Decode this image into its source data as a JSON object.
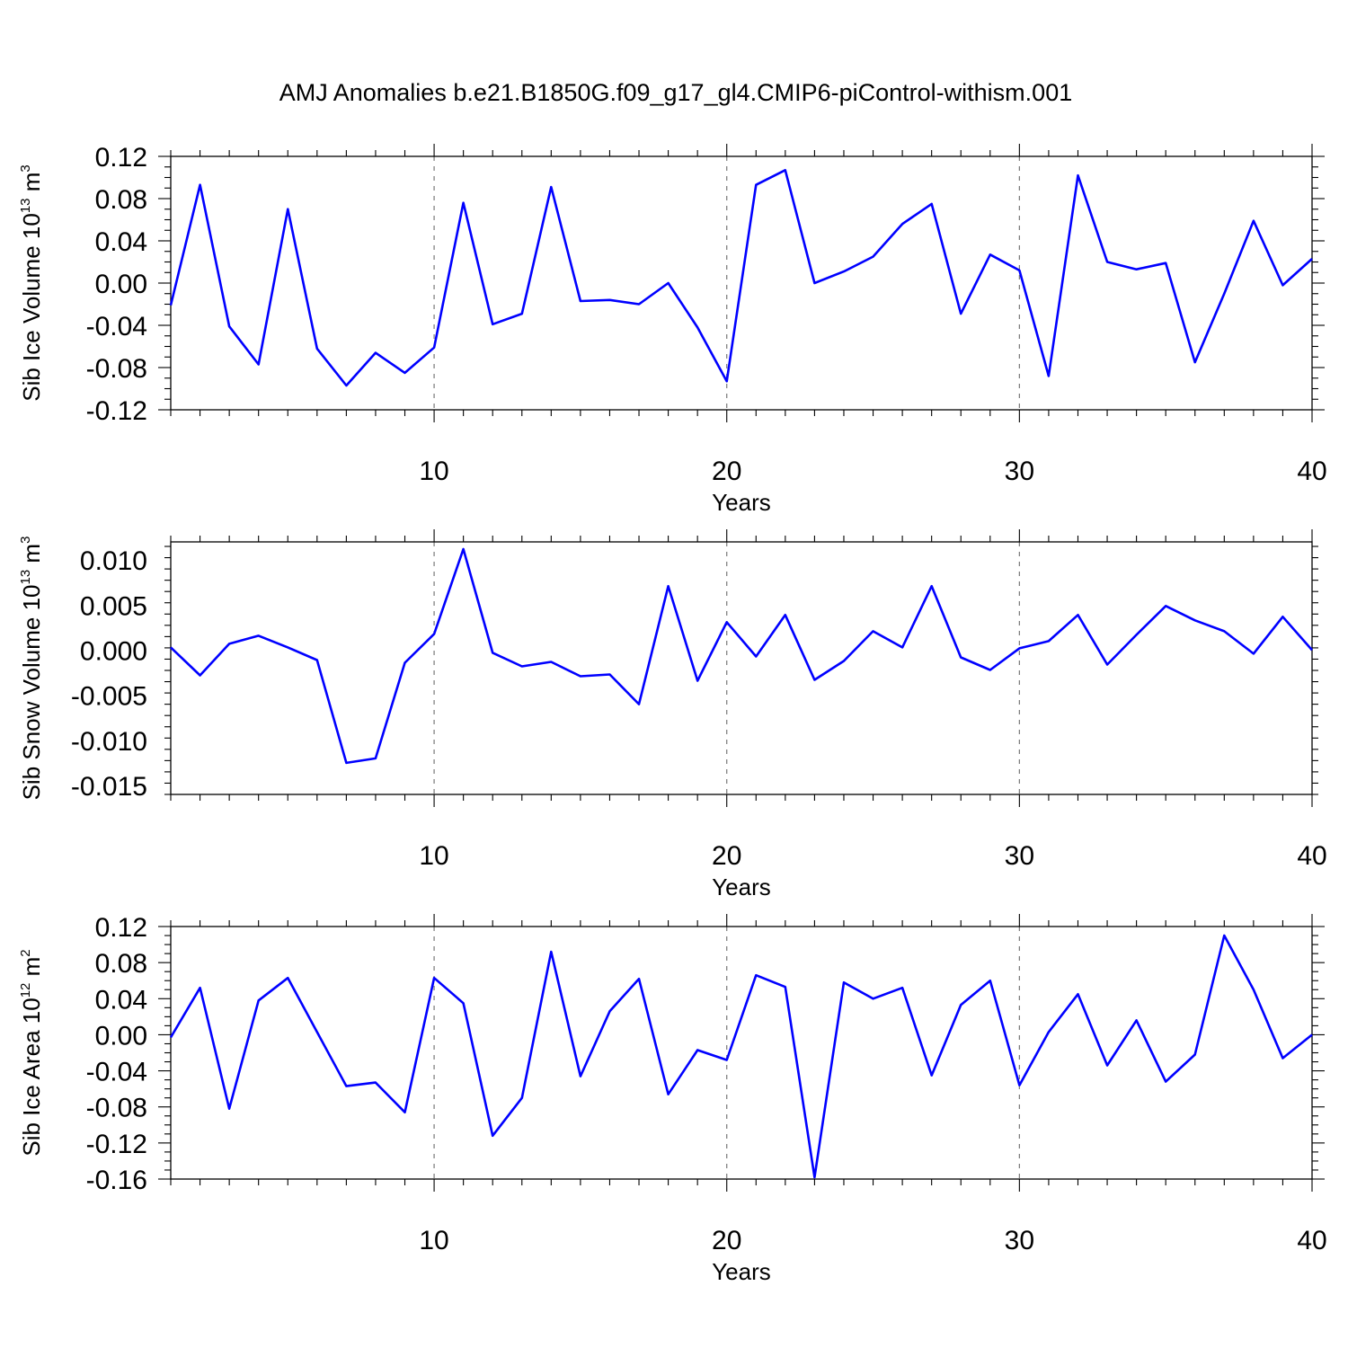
{
  "title": "AMJ Anomalies b.e21.B1850G.f09_g17_gl4.CMIP6-piControl-withism.001",
  "colors": {
    "line": "#0000ff",
    "frame": "#000000",
    "grid": "#777777",
    "background": "#ffffff"
  },
  "chart_data": [
    {
      "type": "line",
      "ylabel": {
        "text": "Sib Ice Volume 10",
        "exp": "13",
        "unit": " m",
        "unit_exp": "3"
      },
      "xlabel": "Years",
      "xlim": [
        1,
        40
      ],
      "ylim": [
        -0.12,
        0.12
      ],
      "xticks": [
        10,
        20,
        30,
        40
      ],
      "yticks": [
        -0.12,
        -0.08,
        -0.04,
        0.0,
        0.04,
        0.08,
        0.12
      ],
      "ytick_labels": [
        "-0.12",
        "-0.08",
        "-0.04",
        "0.00",
        "0.04",
        "0.08",
        "0.12"
      ],
      "grid_x": [
        10,
        20,
        30
      ],
      "x": [
        1,
        2,
        3,
        4,
        5,
        6,
        7,
        8,
        9,
        10,
        11,
        12,
        13,
        14,
        15,
        16,
        17,
        18,
        19,
        20,
        21,
        22,
        23,
        24,
        25,
        26,
        27,
        28,
        29,
        30,
        31,
        32,
        33,
        34,
        35,
        36,
        37,
        38,
        39,
        40
      ],
      "values": [
        -0.021,
        0.093,
        -0.041,
        -0.077,
        0.07,
        -0.062,
        -0.097,
        -0.066,
        -0.085,
        -0.061,
        0.076,
        -0.039,
        -0.029,
        0.091,
        -0.017,
        -0.016,
        -0.02,
        0.0,
        -0.042,
        -0.093,
        0.093,
        0.107,
        0.0,
        0.011,
        0.025,
        0.056,
        0.075,
        -0.029,
        0.027,
        0.012,
        -0.088,
        0.102,
        0.02,
        0.013,
        0.019,
        -0.075,
        -0.01,
        0.059,
        -0.002,
        0.023
      ]
    },
    {
      "type": "line",
      "ylabel": {
        "text": "Sib Snow Volume 10",
        "exp": "13",
        "unit": " m",
        "unit_exp": "3"
      },
      "xlabel": "Years",
      "xlim": [
        1,
        40
      ],
      "ylim": [
        -0.016,
        0.012
      ],
      "xticks": [
        10,
        20,
        30,
        40
      ],
      "yticks": [
        -0.015,
        -0.01,
        -0.005,
        0.0,
        0.005,
        0.01
      ],
      "ytick_labels": [
        "-0.015",
        "-0.010",
        "-0.005",
        "0.000",
        "0.005",
        "0.010"
      ],
      "grid_x": [
        10,
        20,
        30
      ],
      "x": [
        1,
        2,
        3,
        4,
        5,
        6,
        7,
        8,
        9,
        10,
        11,
        12,
        13,
        14,
        15,
        16,
        17,
        18,
        19,
        20,
        21,
        22,
        23,
        24,
        25,
        26,
        27,
        28,
        29,
        30,
        31,
        32,
        33,
        34,
        35,
        36,
        37,
        38,
        39,
        40
      ],
      "values": [
        0.0003,
        -0.0028,
        0.0007,
        0.0016,
        0.0003,
        -0.0011,
        -0.0125,
        -0.012,
        -0.0014,
        0.0018,
        0.0112,
        -0.0003,
        -0.0018,
        -0.0013,
        -0.0029,
        -0.0027,
        -0.006,
        0.0071,
        -0.0034,
        0.0031,
        -0.0007,
        0.0039,
        -0.0033,
        -0.0012,
        0.0021,
        0.0003,
        0.0071,
        -0.0008,
        -0.0022,
        0.0002,
        0.001,
        0.0039,
        -0.0016,
        0.0017,
        0.0049,
        0.0033,
        0.0021,
        -0.0004,
        0.0037,
        0.0
      ]
    },
    {
      "type": "line",
      "ylabel": {
        "text": "Sib Ice Area 10",
        "exp": "12",
        "unit": " m",
        "unit_exp": "2"
      },
      "xlabel": "Years",
      "xlim": [
        1,
        40
      ],
      "ylim": [
        -0.16,
        0.12
      ],
      "xticks": [
        10,
        20,
        30,
        40
      ],
      "yticks": [
        -0.16,
        -0.12,
        -0.08,
        -0.04,
        0.0,
        0.04,
        0.08,
        0.12
      ],
      "ytick_labels": [
        "-0.16",
        "-0.12",
        "-0.08",
        "-0.04",
        "0.00",
        "0.04",
        "0.08",
        "0.12"
      ],
      "grid_x": [
        10,
        20,
        30
      ],
      "x": [
        1,
        2,
        3,
        4,
        5,
        6,
        7,
        8,
        9,
        10,
        11,
        12,
        13,
        14,
        15,
        16,
        17,
        18,
        19,
        20,
        21,
        22,
        23,
        24,
        25,
        26,
        27,
        28,
        29,
        30,
        31,
        32,
        33,
        34,
        35,
        36,
        37,
        38,
        39,
        40
      ],
      "values": [
        -0.003,
        0.052,
        -0.082,
        0.038,
        0.063,
        0.003,
        -0.057,
        -0.053,
        -0.086,
        0.063,
        0.035,
        -0.112,
        -0.07,
        0.092,
        -0.046,
        0.026,
        0.062,
        -0.066,
        -0.017,
        -0.028,
        0.066,
        0.053,
        -0.158,
        0.058,
        0.04,
        0.052,
        -0.045,
        0.033,
        0.06,
        -0.056,
        0.003,
        0.045,
        -0.034,
        0.016,
        -0.052,
        -0.022,
        0.11,
        0.05,
        -0.026,
        0.0
      ]
    }
  ]
}
